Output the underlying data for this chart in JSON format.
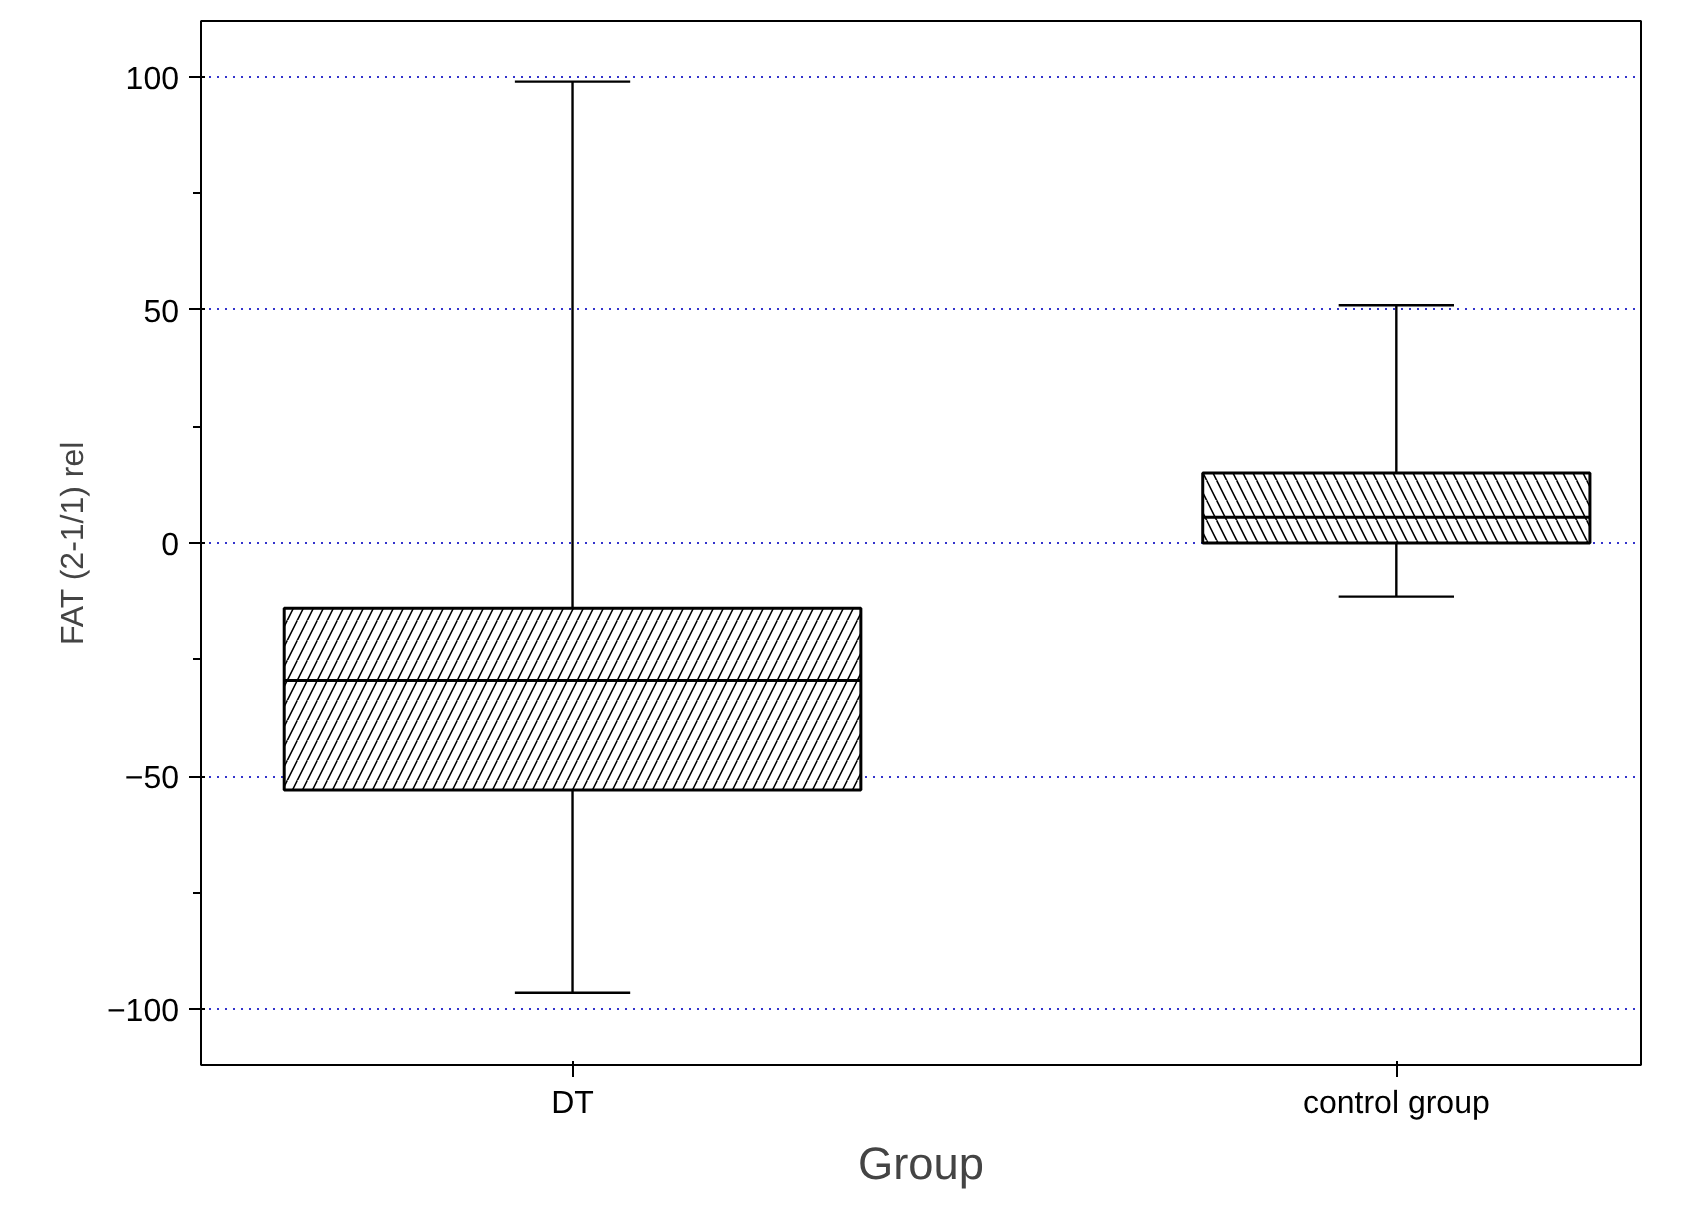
{
  "chart_data": {
    "type": "box",
    "categories": [
      "DT",
      "control group"
    ],
    "boxes": [
      {
        "low": -96.5,
        "q1": -53,
        "median": -29.5,
        "q3": -14,
        "high": 99
      },
      {
        "low": -11.5,
        "q1": 0,
        "median": 5.5,
        "q3": 15,
        "high": 51
      }
    ],
    "xlabel": "Group",
    "ylabel": "FAT (2-1/1) rel",
    "ylim": [
      -112,
      112
    ],
    "yticks": [
      -100,
      -50,
      0,
      50,
      100
    ],
    "grid": "y"
  }
}
